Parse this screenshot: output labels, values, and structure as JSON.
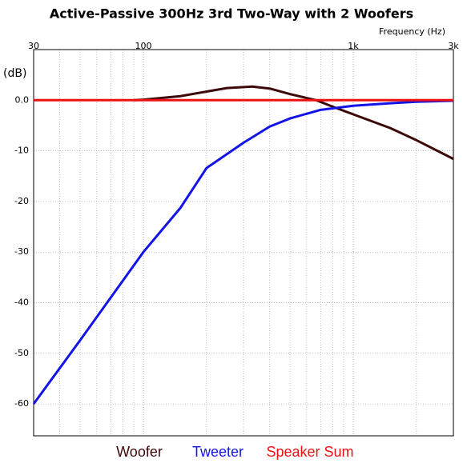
{
  "chart_data": {
    "type": "line",
    "title": "Active-Passive 300Hz 3rd Two-Way with 2 Woofers",
    "x_label": "Frequency  (Hz)",
    "y_label": "(dB)",
    "log_x": true,
    "grid": true,
    "xlim": [
      30,
      3000
    ],
    "ylim": [
      -66.3,
      10
    ],
    "xticks": [
      30,
      100,
      {
        "value": 1000,
        "label": "1k"
      },
      {
        "value": 3000,
        "label": "3k"
      }
    ],
    "yticks": [
      {
        "value": 0,
        "label": "0.0"
      },
      -10,
      -20,
      -30,
      -40,
      -50,
      -60
    ],
    "series": [
      {
        "name": "Woofer",
        "color": "#3d0808",
        "x": [
          90,
          100,
          150,
          200,
          250,
          330,
          400,
          500,
          666,
          800,
          1000,
          1500,
          2000,
          3000
        ],
        "values": [
          0,
          0.1,
          0.8,
          1.7,
          2.4,
          2.7,
          2.3,
          1.2,
          0,
          -1.3,
          -2.8,
          -5.5,
          -7.9,
          -11.6
        ]
      },
      {
        "name": "Tweeter",
        "color": "#1414e6",
        "x": [
          30,
          50,
          100,
          150,
          200,
          300,
          400,
          500,
          700,
          1000,
          1500,
          2000,
          3000
        ],
        "values": [
          -60,
          -47.4,
          -30,
          -21.3,
          -13.4,
          -8.4,
          -5.2,
          -3.6,
          -1.9,
          -1.1,
          -0.6,
          -0.3,
          -0.1
        ]
      },
      {
        "name": "Speaker Sum",
        "color": "#ee1111",
        "x": [
          30,
          3000
        ],
        "values": [
          0,
          0
        ]
      }
    ]
  }
}
